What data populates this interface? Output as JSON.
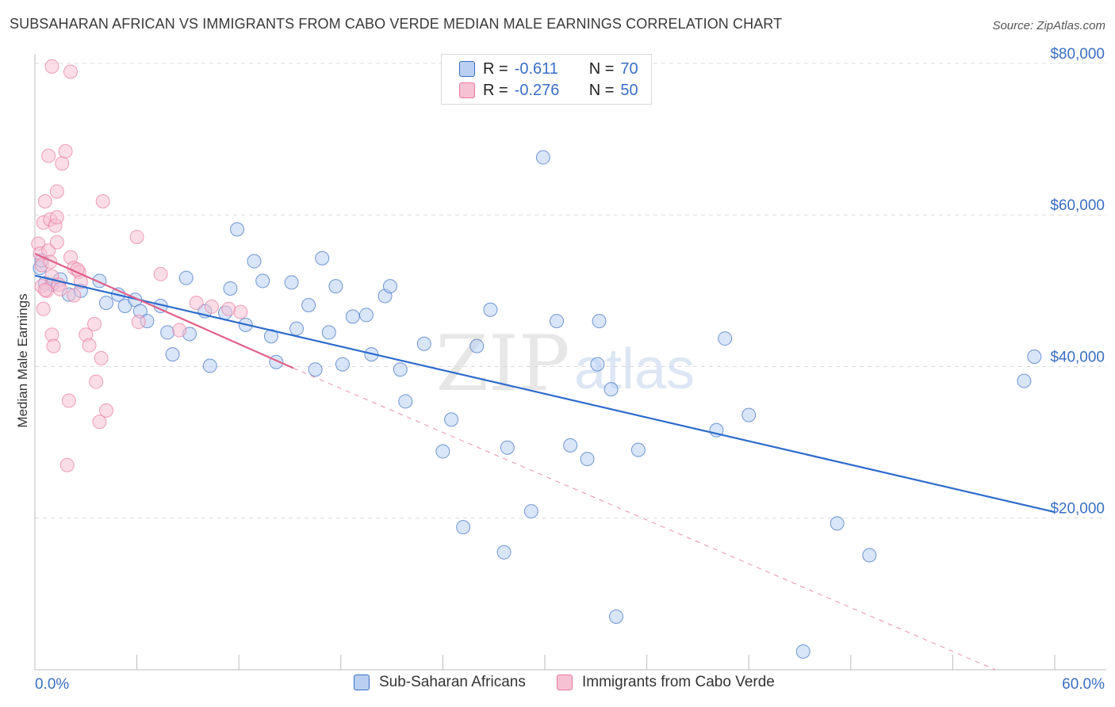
{
  "header": {
    "title": "SUBSAHARAN AFRICAN VS IMMIGRANTS FROM CABO VERDE MEDIAN MALE EARNINGS CORRELATION CHART",
    "source": "Source: ZipAtlas.com"
  },
  "legend": {
    "r_label": "R =",
    "n_label": "N =",
    "rows": [
      {
        "r": "-0.611",
        "n": "70"
      },
      {
        "r": "-0.276",
        "n": "50"
      }
    ]
  },
  "watermark": {
    "zip": "ZIP",
    "atlas": "atlas"
  },
  "colors": {
    "blue": "#3a6fc4",
    "blue_fill": "#b9d0f2",
    "blue_line": "#2d6ccc",
    "pink": "#e8799f",
    "pink_fill": "#f6c1d3",
    "pink_line": "#e0608a",
    "axis_text": "#3a6fc4",
    "grid": "#dcdcdc"
  },
  "chart_data": {
    "type": "scatter",
    "title": "SUBSAHARAN AFRICAN VS IMMIGRANTS FROM CABO VERDE MEDIAN MALE EARNINGS CORRELATION CHART",
    "xlabel": "",
    "ylabel": "Median Male Earnings",
    "xlim": [
      0,
      60
    ],
    "ylim": [
      0,
      80000
    ],
    "x_tick_labels": [
      "0.0%",
      "60.0%"
    ],
    "y_ticks": [
      20000,
      40000,
      60000,
      80000
    ],
    "y_tick_labels": [
      "$20,000",
      "$40,000",
      "$60,000",
      "$80,000"
    ],
    "grid": true,
    "legend_position": "bottom",
    "series": [
      {
        "name": "Sub-Saharan Africans",
        "color": "#3a6fc4",
        "trend": {
          "x": [
            0,
            60
          ],
          "y": [
            52000,
            20800
          ],
          "dashed_extension": false
        },
        "points": [
          {
            "x": 0.3,
            "y": 53000
          },
          {
            "x": 0.6,
            "y": 51000
          },
          {
            "x": 1.0,
            "y": 50800
          },
          {
            "x": 1.5,
            "y": 51500
          },
          {
            "x": 2.0,
            "y": 49500
          },
          {
            "x": 2.7,
            "y": 50000
          },
          {
            "x": 3.8,
            "y": 51300
          },
          {
            "x": 4.2,
            "y": 48400
          },
          {
            "x": 4.9,
            "y": 49500
          },
          {
            "x": 5.3,
            "y": 48000
          },
          {
            "x": 5.9,
            "y": 48800
          },
          {
            "x": 6.2,
            "y": 47300
          },
          {
            "x": 6.6,
            "y": 46000
          },
          {
            "x": 7.4,
            "y": 48000
          },
          {
            "x": 7.8,
            "y": 44500
          },
          {
            "x": 8.1,
            "y": 41600
          },
          {
            "x": 8.9,
            "y": 51700
          },
          {
            "x": 9.1,
            "y": 44300
          },
          {
            "x": 10.0,
            "y": 47300
          },
          {
            "x": 10.3,
            "y": 40100
          },
          {
            "x": 11.2,
            "y": 47100
          },
          {
            "x": 11.5,
            "y": 50300
          },
          {
            "x": 11.9,
            "y": 58100
          },
          {
            "x": 12.4,
            "y": 45500
          },
          {
            "x": 12.9,
            "y": 53900
          },
          {
            "x": 13.4,
            "y": 51300
          },
          {
            "x": 13.9,
            "y": 44000
          },
          {
            "x": 14.2,
            "y": 40600
          },
          {
            "x": 15.1,
            "y": 51100
          },
          {
            "x": 15.4,
            "y": 45000
          },
          {
            "x": 16.1,
            "y": 48100
          },
          {
            "x": 16.5,
            "y": 39600
          },
          {
            "x": 16.9,
            "y": 54300
          },
          {
            "x": 17.3,
            "y": 44500
          },
          {
            "x": 17.7,
            "y": 50600
          },
          {
            "x": 18.1,
            "y": 40300
          },
          {
            "x": 18.7,
            "y": 46600
          },
          {
            "x": 19.5,
            "y": 46800
          },
          {
            "x": 19.8,
            "y": 41600
          },
          {
            "x": 20.6,
            "y": 49300
          },
          {
            "x": 20.9,
            "y": 50600
          },
          {
            "x": 21.5,
            "y": 39600
          },
          {
            "x": 21.8,
            "y": 35400
          },
          {
            "x": 22.9,
            "y": 43000
          },
          {
            "x": 24.0,
            "y": 28800
          },
          {
            "x": 24.5,
            "y": 33000
          },
          {
            "x": 25.2,
            "y": 18800
          },
          {
            "x": 26.0,
            "y": 42700
          },
          {
            "x": 26.8,
            "y": 47500
          },
          {
            "x": 27.6,
            "y": 15500
          },
          {
            "x": 27.8,
            "y": 29300
          },
          {
            "x": 29.2,
            "y": 20900
          },
          {
            "x": 29.9,
            "y": 67600
          },
          {
            "x": 30.7,
            "y": 46000
          },
          {
            "x": 31.5,
            "y": 29600
          },
          {
            "x": 32.5,
            "y": 27800
          },
          {
            "x": 33.1,
            "y": 40300
          },
          {
            "x": 33.2,
            "y": 46000
          },
          {
            "x": 33.9,
            "y": 37000
          },
          {
            "x": 34.2,
            "y": 7000
          },
          {
            "x": 35.5,
            "y": 29000
          },
          {
            "x": 40.6,
            "y": 43700
          },
          {
            "x": 40.1,
            "y": 31600
          },
          {
            "x": 42.0,
            "y": 33600
          },
          {
            "x": 45.2,
            "y": 2400
          },
          {
            "x": 47.2,
            "y": 19300
          },
          {
            "x": 49.1,
            "y": 15100
          },
          {
            "x": 58.2,
            "y": 38100
          },
          {
            "x": 58.8,
            "y": 41300
          },
          {
            "x": 0.4,
            "y": 54000
          }
        ]
      },
      {
        "name": "Immigrants from Cabo Verde",
        "color": "#e8799f",
        "trend": {
          "x": [
            0,
            15.2
          ],
          "y": [
            54900,
            39800
          ],
          "dashed_to": {
            "x": 56.5,
            "y": 0
          }
        },
        "points": [
          {
            "x": 0.2,
            "y": 56200
          },
          {
            "x": 0.3,
            "y": 54900
          },
          {
            "x": 0.4,
            "y": 53400
          },
          {
            "x": 0.4,
            "y": 50600
          },
          {
            "x": 0.5,
            "y": 47600
          },
          {
            "x": 0.5,
            "y": 59000
          },
          {
            "x": 0.6,
            "y": 61800
          },
          {
            "x": 0.7,
            "y": 50000
          },
          {
            "x": 0.8,
            "y": 55300
          },
          {
            "x": 0.8,
            "y": 67800
          },
          {
            "x": 0.9,
            "y": 59400
          },
          {
            "x": 1.0,
            "y": 79600
          },
          {
            "x": 1.0,
            "y": 44200
          },
          {
            "x": 1.0,
            "y": 51900
          },
          {
            "x": 1.1,
            "y": 42700
          },
          {
            "x": 1.2,
            "y": 58600
          },
          {
            "x": 1.3,
            "y": 63100
          },
          {
            "x": 1.3,
            "y": 56400
          },
          {
            "x": 1.3,
            "y": 59700
          },
          {
            "x": 1.4,
            "y": 50800
          },
          {
            "x": 1.6,
            "y": 66800
          },
          {
            "x": 1.8,
            "y": 68400
          },
          {
            "x": 1.9,
            "y": 27000
          },
          {
            "x": 2.0,
            "y": 35500
          },
          {
            "x": 2.1,
            "y": 54400
          },
          {
            "x": 2.1,
            "y": 78900
          },
          {
            "x": 2.3,
            "y": 53000
          },
          {
            "x": 2.3,
            "y": 49400
          },
          {
            "x": 2.6,
            "y": 52500
          },
          {
            "x": 2.7,
            "y": 51200
          },
          {
            "x": 3.0,
            "y": 44200
          },
          {
            "x": 3.2,
            "y": 42800
          },
          {
            "x": 3.5,
            "y": 45600
          },
          {
            "x": 3.6,
            "y": 38000
          },
          {
            "x": 3.8,
            "y": 32700
          },
          {
            "x": 3.9,
            "y": 41100
          },
          {
            "x": 4.0,
            "y": 61800
          },
          {
            "x": 4.2,
            "y": 34200
          },
          {
            "x": 6.0,
            "y": 57100
          },
          {
            "x": 6.1,
            "y": 45900
          },
          {
            "x": 7.4,
            "y": 52200
          },
          {
            "x": 8.5,
            "y": 44800
          },
          {
            "x": 9.5,
            "y": 48400
          },
          {
            "x": 10.4,
            "y": 47900
          },
          {
            "x": 11.4,
            "y": 47600
          },
          {
            "x": 12.1,
            "y": 47200
          },
          {
            "x": 1.5,
            "y": 50200
          },
          {
            "x": 0.9,
            "y": 53800
          },
          {
            "x": 2.5,
            "y": 52800
          },
          {
            "x": 0.6,
            "y": 50100
          }
        ]
      }
    ]
  },
  "bottom_legend": [
    {
      "label": "Sub-Saharan Africans"
    },
    {
      "label": "Immigrants from Cabo Verde"
    }
  ]
}
